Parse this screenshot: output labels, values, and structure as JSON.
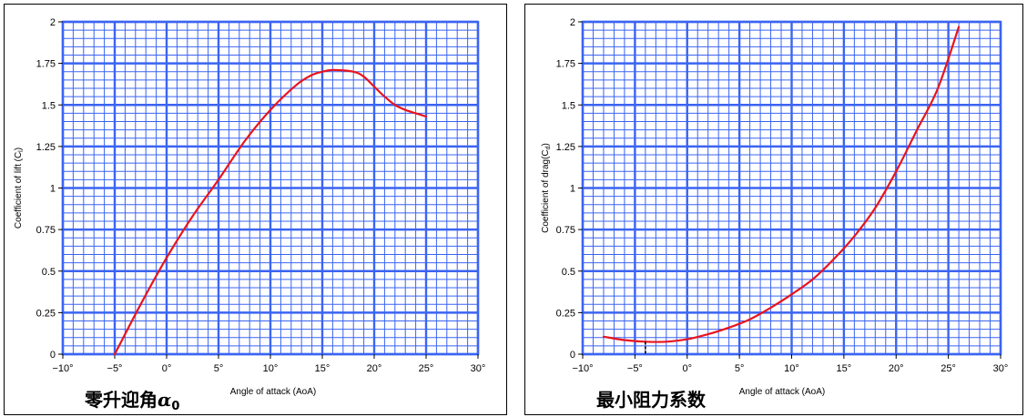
{
  "colors": {
    "grid": "#3b64f2",
    "curve": "#e8141e",
    "frame": "#000000"
  },
  "chart_data": [
    {
      "type": "line",
      "caption": {
        "text": "零升迎角",
        "symbol": "α",
        "subscript": "0"
      },
      "xlabel": "Angle of attack (AoA)",
      "ylabel": "Coefficient of lift (C",
      "ylabel_sub": "l",
      "ylabel_tail": ")",
      "xlim": [
        -10,
        30
      ],
      "ylim": [
        0,
        2
      ],
      "x_ticks": [
        -10,
        -5,
        0,
        5,
        10,
        15,
        20,
        25,
        30
      ],
      "x_tick_labels": [
        "−10°",
        "−5°",
        "0°",
        "5°",
        "10°",
        "15°",
        "20°",
        "25°",
        "30°"
      ],
      "y_ticks": [
        0,
        0.25,
        0.5,
        0.75,
        1,
        1.25,
        1.5,
        1.75,
        2
      ],
      "y_tick_labels": [
        "0",
        "0.25",
        "0.5",
        "0.75",
        "1",
        "1.25",
        "1.5",
        "1.75",
        "2"
      ],
      "grid": true,
      "series": [
        {
          "x": [
            -5,
            -2.5,
            0,
            2.5,
            5,
            7.5,
            10,
            12.5,
            14,
            15,
            16,
            18,
            19,
            20,
            21,
            22,
            23,
            24,
            25
          ],
          "y": [
            0,
            0.3,
            0.58,
            0.83,
            1.05,
            1.28,
            1.47,
            1.62,
            1.68,
            1.7,
            1.71,
            1.7,
            1.67,
            1.61,
            1.55,
            1.5,
            1.47,
            1.45,
            1.43
          ]
        }
      ],
      "annotations": []
    },
    {
      "type": "line",
      "caption": {
        "text": "最小阻力系数"
      },
      "xlabel": "Angle of attack (AoA)",
      "ylabel": "Coefficient of drag(C",
      "ylabel_sub": "d",
      "ylabel_tail": ")",
      "xlim": [
        -10,
        30
      ],
      "ylim": [
        0,
        2
      ],
      "x_ticks": [
        -10,
        -5,
        0,
        5,
        10,
        15,
        20,
        25,
        30
      ],
      "x_tick_labels": [
        "−10°",
        "−5°",
        "0°",
        "5°",
        "10°",
        "15°",
        "20°",
        "25°",
        "30°"
      ],
      "y_ticks": [
        0,
        0.25,
        0.5,
        0.75,
        1,
        1.25,
        1.5,
        1.75,
        2
      ],
      "y_tick_labels": [
        "0",
        "0.25",
        "0.5",
        "0.75",
        "1",
        "1.25",
        "1.5",
        "1.75",
        "2"
      ],
      "grid": true,
      "series": [
        {
          "x": [
            -8,
            -6,
            -4,
            -2,
            0,
            2,
            4,
            6,
            8,
            10,
            12,
            14,
            16,
            18,
            20,
            22,
            24,
            26
          ],
          "y": [
            0.105,
            0.085,
            0.075,
            0.075,
            0.09,
            0.12,
            0.16,
            0.21,
            0.28,
            0.36,
            0.45,
            0.57,
            0.71,
            0.88,
            1.1,
            1.35,
            1.6,
            1.97
          ]
        }
      ],
      "annotations": [
        {
          "type": "min-marker",
          "x": -4,
          "y": 0.075
        }
      ]
    }
  ]
}
